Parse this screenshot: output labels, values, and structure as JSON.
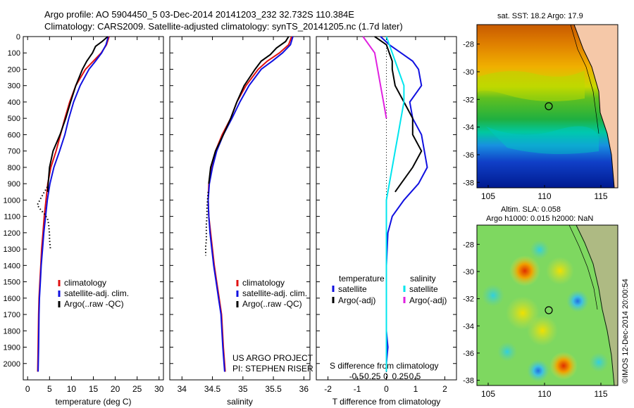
{
  "header": {
    "line1": "Argo profile: AO 5904450_5 03-Dec-2014 20141203_232 32.732S 110.384E",
    "line2": "Climatology: CARS2009. Satellite-adjusted climatology: synTS_20141205.nc (1.7d later)"
  },
  "colors": {
    "climatology": "#e01010",
    "satellite": "#1010e0",
    "argo": "#000000",
    "sal_satellite": "#00e5ee",
    "sal_argo": "#e020e0",
    "land": "#f5c8a8"
  },
  "legend": {
    "climatology": "climatology",
    "satellite_adj": "satellite-adj. clim.",
    "argo_raw": "Argo(..raw -QC)",
    "temperature": "temperature",
    "salinity": "salinity",
    "satellite": "satellite",
    "argo_adj": "Argo(-adj)"
  },
  "annotations": {
    "project_line1": "US ARGO PROJECT",
    "project_line2": "PI: STEPHEN RISER",
    "s_diff_label": "S difference from climatology",
    "sst_title": "sat. SST: 18.2 Argo: 17.9",
    "sla_title_1": "Altim. SLA: 0.058",
    "sla_title_2": "Argo h1000: 0.015 h2000: NaN",
    "credit": "©IMOS 12-Dec-2014 20:00:54"
  },
  "chart_data": [
    {
      "type": "line",
      "panel": "temperature",
      "xlabel": "temperature (deg C)",
      "ylabel": "",
      "xlim": [
        -1,
        31
      ],
      "ylim": [
        2100,
        0
      ],
      "xticks": [
        0,
        5,
        10,
        15,
        20,
        25,
        30
      ],
      "yticks": [
        0,
        100,
        200,
        300,
        400,
        500,
        600,
        700,
        800,
        900,
        1000,
        1100,
        1200,
        1300,
        1400,
        1500,
        1600,
        1700,
        1800,
        1900,
        2000
      ],
      "series": [
        {
          "name": "climatology",
          "color": "#e01010",
          "x": [
            18.6,
            18.0,
            16.8,
            15.0,
            13.2,
            11.0,
            9.6,
            8.5,
            7.5,
            6.5,
            5.3,
            4.6,
            4.2,
            3.8,
            3.5,
            3.2,
            3.0,
            2.8,
            2.6,
            2.5,
            2.4,
            2.3
          ],
          "y": [
            0,
            50,
            100,
            150,
            200,
            300,
            400,
            500,
            600,
            700,
            800,
            900,
            1000,
            1100,
            1200,
            1300,
            1400,
            1500,
            1600,
            1700,
            1900,
            2050
          ]
        },
        {
          "name": "satellite-adj. clim.",
          "color": "#1010e0",
          "x": [
            18.4,
            17.9,
            16.9,
            15.5,
            14.0,
            12.0,
            10.5,
            9.4,
            8.5,
            7.3,
            6.0,
            5.1,
            4.5,
            4.1,
            3.7,
            3.4,
            3.1,
            2.9,
            2.7,
            2.6,
            2.5,
            2.4
          ],
          "y": [
            0,
            50,
            100,
            150,
            200,
            300,
            400,
            500,
            600,
            700,
            800,
            900,
            1000,
            1100,
            1200,
            1300,
            1400,
            1500,
            1600,
            1700,
            1900,
            2050
          ]
        },
        {
          "name": "Argo(..raw -QC)",
          "color": "#000000",
          "x": [
            18.3,
            17.0,
            15.5,
            14.8,
            13.5,
            12.5,
            11.0,
            9.8,
            8.7,
            7.4,
            5.8,
            5.0,
            4.7,
            4.6
          ],
          "y": [
            0,
            30,
            60,
            100,
            150,
            200,
            300,
            400,
            500,
            600,
            700,
            800,
            900,
            950
          ]
        },
        {
          "name": "Argo-dotted",
          "color": "#000000",
          "dotted": true,
          "x": [
            4.5,
            3.6,
            2.8,
            2.2,
            3.0,
            4.0,
            4.6,
            4.8,
            4.9,
            5.0,
            5.0,
            5.1,
            5.2
          ],
          "y": [
            920,
            960,
            1000,
            1030,
            1060,
            1090,
            1120,
            1150,
            1180,
            1210,
            1240,
            1270,
            1300
          ]
        }
      ]
    },
    {
      "type": "line",
      "panel": "salinity",
      "xlabel": "salinity",
      "ylabel": "",
      "xlim": [
        33.8,
        36.1
      ],
      "ylim": [
        2100,
        0
      ],
      "xticks": [
        34,
        34.5,
        35,
        35.5,
        36
      ],
      "series": [
        {
          "name": "climatology",
          "color": "#e01010",
          "x": [
            35.8,
            35.75,
            35.6,
            35.4,
            35.25,
            35.05,
            34.9,
            34.8,
            34.66,
            34.55,
            34.48,
            34.44,
            34.43,
            34.44,
            34.47,
            34.5,
            34.53,
            34.57,
            34.61,
            34.65,
            34.68,
            34.71
          ],
          "y": [
            0,
            50,
            100,
            150,
            200,
            300,
            400,
            500,
            600,
            700,
            800,
            900,
            1000,
            1100,
            1200,
            1300,
            1400,
            1500,
            1600,
            1700,
            1900,
            2050
          ]
        },
        {
          "name": "satellite-adj. clim.",
          "color": "#1010e0",
          "x": [
            35.82,
            35.78,
            35.65,
            35.48,
            35.3,
            35.1,
            34.95,
            34.82,
            34.68,
            34.57,
            34.5,
            34.45,
            34.43,
            34.44,
            34.46,
            34.49,
            34.52,
            34.56,
            34.6,
            34.64,
            34.67,
            34.7
          ],
          "y": [
            0,
            50,
            100,
            150,
            200,
            300,
            400,
            500,
            600,
            700,
            800,
            900,
            1000,
            1100,
            1200,
            1300,
            1400,
            1500,
            1600,
            1700,
            1900,
            2050
          ]
        },
        {
          "name": "Argo(..raw -QC)",
          "color": "#000000",
          "x": [
            35.75,
            35.7,
            35.55,
            35.45,
            35.3,
            35.2,
            35.02,
            34.9,
            34.8,
            34.68,
            34.55,
            34.47,
            34.44
          ],
          "y": [
            0,
            30,
            70,
            110,
            150,
            200,
            300,
            400,
            500,
            600,
            700,
            800,
            900
          ]
        },
        {
          "name": "Argo-dotted",
          "color": "#000000",
          "dotted": true,
          "x": [
            34.43,
            34.42,
            34.41,
            34.41,
            34.4,
            34.4,
            34.4,
            34.39,
            34.39,
            34.39
          ],
          "y": [
            950,
            1000,
            1050,
            1100,
            1150,
            1200,
            1250,
            1280,
            1310,
            1340
          ]
        }
      ]
    },
    {
      "type": "line",
      "panel": "difference",
      "xlabel": "T difference from climatology",
      "xlim": [
        -2.4,
        2.4
      ],
      "ylim": [
        2100,
        0
      ],
      "xticks": [
        -2,
        -1,
        0,
        1,
        2
      ],
      "s_axis_labels": [
        "-0.5",
        "-0.25",
        "0",
        "0.25",
        "0.5"
      ],
      "series": [
        {
          "name": "temperature satellite",
          "color": "#1010e0",
          "x": [
            -0.2,
            0.1,
            0.5,
            0.9,
            1.1,
            1.2,
            0.8,
            0.9,
            1.2,
            1.3,
            1.4,
            1.1,
            0.6,
            0.2,
            0.05,
            0.0,
            0.0,
            0.0,
            0.05,
            0.0,
            0.0
          ],
          "y": [
            0,
            50,
            100,
            150,
            200,
            300,
            400,
            500,
            600,
            700,
            800,
            900,
            1000,
            1100,
            1200,
            1400,
            1600,
            1800,
            1900,
            2000,
            2050
          ]
        },
        {
          "name": "temperature Argo(-adj)",
          "color": "#000000",
          "x": [
            -0.4,
            0.0,
            0.1,
            0.2,
            0.2,
            0.3,
            0.6,
            0.9,
            0.9,
            1.2,
            0.9,
            0.5,
            0.3
          ],
          "y": [
            0,
            50,
            100,
            150,
            200,
            300,
            400,
            500,
            600,
            700,
            800,
            900,
            950
          ]
        },
        {
          "name": "salinity satellite",
          "color": "#00e5ee",
          "x": [
            0.0,
            0.2,
            0.4,
            0.6,
            0.6,
            0.5,
            0.4,
            0.3,
            0.2,
            0.0,
            0.0,
            0.0,
            0.0,
            0.0,
            0.0,
            0.0
          ],
          "y": [
            0,
            100,
            200,
            300,
            400,
            500,
            600,
            700,
            800,
            1000,
            1200,
            1400,
            1600,
            1800,
            2000,
            2050
          ]
        },
        {
          "name": "salinity Argo(-adj)",
          "color": "#e020e0",
          "x": [
            -0.8,
            -0.6,
            -0.4,
            -0.3,
            -0.2,
            -0.1,
            0.0
          ],
          "y": [
            0,
            50,
            100,
            200,
            300,
            400,
            500
          ]
        }
      ]
    },
    {
      "type": "heatmap",
      "panel": "sst_map",
      "title": "sat. SST: 18.2 Argo: 17.9",
      "xticks": [
        105,
        110,
        115
      ],
      "yticks": [
        -28,
        -30,
        -32,
        -34,
        -36,
        -38
      ],
      "argo_position": [
        110.384,
        -32.732
      ]
    },
    {
      "type": "heatmap",
      "panel": "sla_map",
      "title": "Altim. SLA: 0.058",
      "xticks": [
        105,
        110,
        115
      ],
      "yticks": [
        -28,
        -30,
        -32,
        -34,
        -36,
        -38
      ],
      "argo_position": [
        110.384,
        -32.732
      ]
    }
  ]
}
